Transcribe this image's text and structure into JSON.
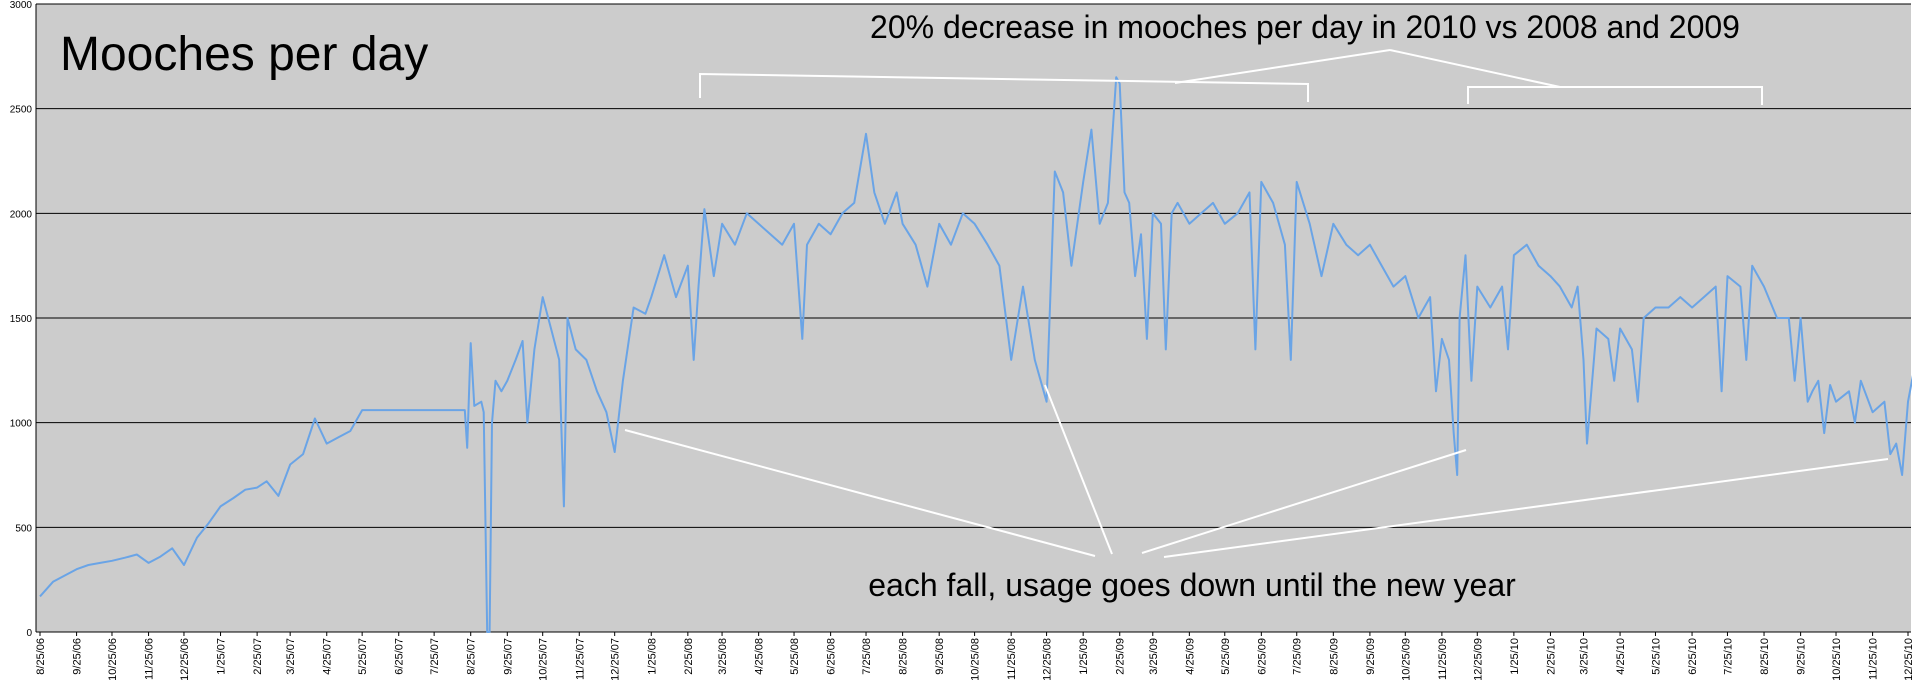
{
  "chart_data": {
    "type": "line",
    "title": "Mooches per day",
    "xlabel": "",
    "ylabel": "",
    "ylim": [
      0,
      3000
    ],
    "yticks": [
      0,
      500,
      1000,
      1500,
      2000,
      2500,
      3000
    ],
    "grid": "horizontal",
    "x_start": "8/25/06",
    "x_end": "12/25/10",
    "x_tick_labels": [
      "8/25/06",
      "9/25/06",
      "10/25/06",
      "11/25/06",
      "12/25/06",
      "1/25/07",
      "2/25/07",
      "3/25/07",
      "4/25/07",
      "5/25/07",
      "6/25/07",
      "7/25/07",
      "8/25/07",
      "9/25/07",
      "10/25/07",
      "11/25/07",
      "12/25/07",
      "1/25/08",
      "2/25/08",
      "3/25/08",
      "4/25/08",
      "5/25/08",
      "6/25/08",
      "7/25/08",
      "8/25/08",
      "9/25/08",
      "10/25/08",
      "11/25/08",
      "12/25/08",
      "1/25/09",
      "2/25/09",
      "3/25/09",
      "4/25/09",
      "5/25/09",
      "6/25/09",
      "7/25/09",
      "8/25/09",
      "9/25/09",
      "10/25/09",
      "11/25/09",
      "12/25/09",
      "1/25/10",
      "2/25/10",
      "3/25/10",
      "4/25/10",
      "5/25/10",
      "6/25/10",
      "7/25/10",
      "8/25/10",
      "9/25/10",
      "10/25/10",
      "11/25/10",
      "12/25/10"
    ],
    "series": [
      {
        "color": "#6aa4e6",
        "points": [
          [
            "8/25/06",
            170
          ],
          [
            "9/5/06",
            240
          ],
          [
            "9/15/06",
            270
          ],
          [
            "9/25/06",
            300
          ],
          [
            "10/5/06",
            320
          ],
          [
            "10/15/06",
            330
          ],
          [
            "10/25/06",
            340
          ],
          [
            "11/5/06",
            355
          ],
          [
            "11/15/06",
            370
          ],
          [
            "11/25/06",
            330
          ],
          [
            "12/5/06",
            360
          ],
          [
            "12/15/06",
            400
          ],
          [
            "12/25/06",
            320
          ],
          [
            "1/5/07",
            450
          ],
          [
            "1/15/07",
            520
          ],
          [
            "1/25/07",
            600
          ],
          [
            "2/5/07",
            640
          ],
          [
            "2/15/07",
            680
          ],
          [
            "2/25/07",
            690
          ],
          [
            "3/5/07",
            720
          ],
          [
            "3/15/07",
            650
          ],
          [
            "3/25/07",
            800
          ],
          [
            "4/5/07",
            850
          ],
          [
            "4/15/07",
            1020
          ],
          [
            "4/25/07",
            900
          ],
          [
            "5/5/07",
            930
          ],
          [
            "5/15/07",
            960
          ],
          [
            "5/25/07",
            1060
          ],
          [
            "6/25/07",
            1060
          ],
          [
            "7/25/07",
            1060
          ],
          [
            "8/20/07",
            1060
          ],
          [
            "8/22/07",
            880
          ],
          [
            "8/25/07",
            1380
          ],
          [
            "8/28/07",
            1080
          ],
          [
            "9/3/07",
            1100
          ],
          [
            "9/5/07",
            1050
          ],
          [
            "9/8/07",
            0
          ],
          [
            "9/10/07",
            0
          ],
          [
            "9/12/07",
            1000
          ],
          [
            "9/15/07",
            1200
          ],
          [
            "9/20/07",
            1150
          ],
          [
            "9/25/07",
            1200
          ],
          [
            "10/2/07",
            1300
          ],
          [
            "10/8/07",
            1390
          ],
          [
            "10/12/07",
            1000
          ],
          [
            "10/18/07",
            1350
          ],
          [
            "10/25/07",
            1600
          ],
          [
            "11/1/07",
            1450
          ],
          [
            "11/8/07",
            1300
          ],
          [
            "11/12/07",
            600
          ],
          [
            "11/15/07",
            1500
          ],
          [
            "11/22/07",
            1350
          ],
          [
            "12/1/07",
            1300
          ],
          [
            "12/10/07",
            1150
          ],
          [
            "12/18/07",
            1050
          ],
          [
            "12/25/07",
            860
          ],
          [
            "1/1/08",
            1200
          ],
          [
            "1/10/08",
            1550
          ],
          [
            "1/20/08",
            1520
          ],
          [
            "1/25/08",
            1600
          ],
          [
            "2/5/08",
            1800
          ],
          [
            "2/15/08",
            1600
          ],
          [
            "2/25/08",
            1750
          ],
          [
            "3/1/08",
            1300
          ],
          [
            "3/5/08",
            1650
          ],
          [
            "3/10/08",
            2020
          ],
          [
            "3/18/08",
            1700
          ],
          [
            "3/25/08",
            1950
          ],
          [
            "4/5/08",
            1850
          ],
          [
            "4/15/08",
            2000
          ],
          [
            "4/25/08",
            1950
          ],
          [
            "5/5/08",
            1900
          ],
          [
            "5/15/08",
            1850
          ],
          [
            "5/25/08",
            1950
          ],
          [
            "6/1/08",
            1400
          ],
          [
            "6/5/08",
            1850
          ],
          [
            "6/15/08",
            1950
          ],
          [
            "6/25/08",
            1900
          ],
          [
            "7/5/08",
            2000
          ],
          [
            "7/15/08",
            2050
          ],
          [
            "7/25/08",
            2380
          ],
          [
            "8/1/08",
            2100
          ],
          [
            "8/10/08",
            1950
          ],
          [
            "8/20/08",
            2100
          ],
          [
            "8/25/08",
            1950
          ],
          [
            "9/5/08",
            1850
          ],
          [
            "9/15/08",
            1650
          ],
          [
            "9/25/08",
            1950
          ],
          [
            "10/5/08",
            1850
          ],
          [
            "10/15/08",
            2000
          ],
          [
            "10/25/08",
            1950
          ],
          [
            "11/5/08",
            1850
          ],
          [
            "11/15/08",
            1750
          ],
          [
            "11/25/08",
            1300
          ],
          [
            "12/5/08",
            1650
          ],
          [
            "12/15/08",
            1300
          ],
          [
            "12/20/08",
            1200
          ],
          [
            "12/25/08",
            1100
          ],
          [
            "1/1/09",
            2200
          ],
          [
            "1/8/09",
            2100
          ],
          [
            "1/15/09",
            1750
          ],
          [
            "1/25/09",
            2150
          ],
          [
            "2/1/09",
            2400
          ],
          [
            "2/8/09",
            1950
          ],
          [
            "2/15/09",
            2050
          ],
          [
            "2/22/09",
            2650
          ],
          [
            "2/25/09",
            2620
          ],
          [
            "3/1/09",
            2100
          ],
          [
            "3/5/09",
            2050
          ],
          [
            "3/10/09",
            1700
          ],
          [
            "3/15/09",
            1900
          ],
          [
            "3/20/09",
            1400
          ],
          [
            "3/25/09",
            2000
          ],
          [
            "4/1/09",
            1950
          ],
          [
            "4/5/09",
            1350
          ],
          [
            "4/10/09",
            2000
          ],
          [
            "4/15/09",
            2050
          ],
          [
            "4/25/09",
            1950
          ],
          [
            "5/5/09",
            2000
          ],
          [
            "5/15/09",
            2050
          ],
          [
            "5/25/09",
            1950
          ],
          [
            "6/5/09",
            2000
          ],
          [
            "6/15/09",
            2100
          ],
          [
            "6/20/09",
            1350
          ],
          [
            "6/25/09",
            2150
          ],
          [
            "7/5/09",
            2050
          ],
          [
            "7/15/09",
            1850
          ],
          [
            "7/20/09",
            1300
          ],
          [
            "7/25/09",
            2150
          ],
          [
            "8/5/09",
            1950
          ],
          [
            "8/15/09",
            1700
          ],
          [
            "8/25/09",
            1950
          ],
          [
            "9/5/09",
            1850
          ],
          [
            "9/15/09",
            1800
          ],
          [
            "9/25/09",
            1850
          ],
          [
            "10/5/09",
            1750
          ],
          [
            "10/15/09",
            1650
          ],
          [
            "10/25/09",
            1700
          ],
          [
            "11/5/09",
            1500
          ],
          [
            "11/15/09",
            1600
          ],
          [
            "11/20/09",
            1150
          ],
          [
            "11/25/09",
            1400
          ],
          [
            "12/1/09",
            1300
          ],
          [
            "12/5/09",
            950
          ],
          [
            "12/8/09",
            750
          ],
          [
            "12/10/09",
            1500
          ],
          [
            "12/15/09",
            1800
          ],
          [
            "12/20/09",
            1200
          ],
          [
            "12/25/09",
            1650
          ],
          [
            "1/5/10",
            1550
          ],
          [
            "1/15/10",
            1650
          ],
          [
            "1/20/10",
            1350
          ],
          [
            "1/25/10",
            1800
          ],
          [
            "2/5/10",
            1850
          ],
          [
            "2/15/10",
            1750
          ],
          [
            "2/25/10",
            1700
          ],
          [
            "3/5/10",
            1650
          ],
          [
            "3/15/10",
            1550
          ],
          [
            "3/20/10",
            1650
          ],
          [
            "3/25/10",
            1300
          ],
          [
            "3/28/10",
            900
          ],
          [
            "4/5/10",
            1450
          ],
          [
            "4/15/10",
            1400
          ],
          [
            "4/20/10",
            1200
          ],
          [
            "4/25/10",
            1450
          ],
          [
            "5/5/10",
            1350
          ],
          [
            "5/10/10",
            1100
          ],
          [
            "5/15/10",
            1500
          ],
          [
            "5/25/10",
            1550
          ],
          [
            "6/5/10",
            1550
          ],
          [
            "6/15/10",
            1600
          ],
          [
            "6/25/10",
            1550
          ],
          [
            "7/5/10",
            1600
          ],
          [
            "7/15/10",
            1650
          ],
          [
            "7/20/10",
            1150
          ],
          [
            "7/25/10",
            1700
          ],
          [
            "8/5/10",
            1650
          ],
          [
            "8/10/10",
            1300
          ],
          [
            "8/15/10",
            1750
          ],
          [
            "8/25/10",
            1650
          ],
          [
            "9/5/10",
            1500
          ],
          [
            "9/15/10",
            1500
          ],
          [
            "9/20/10",
            1200
          ],
          [
            "9/25/10",
            1500
          ],
          [
            "10/1/10",
            1100
          ],
          [
            "10/5/10",
            1150
          ],
          [
            "10/10/10",
            1200
          ],
          [
            "10/15/10",
            950
          ],
          [
            "10/20/10",
            1180
          ],
          [
            "10/25/10",
            1100
          ],
          [
            "11/5/10",
            1150
          ],
          [
            "11/10/10",
            1000
          ],
          [
            "11/15/10",
            1200
          ],
          [
            "11/25/10",
            1050
          ],
          [
            "12/5/10",
            1100
          ],
          [
            "12/10/10",
            850
          ],
          [
            "12/15/10",
            900
          ],
          [
            "12/20/10",
            750
          ],
          [
            "12/25/10",
            1100
          ],
          [
            "12/30/10",
            1250
          ]
        ]
      }
    ],
    "annotations": [
      {
        "text": "20% decrease in mooches per day in 2010 vs 2008 and 2009"
      },
      {
        "text": "each fall, usage goes down until the new year"
      }
    ]
  }
}
